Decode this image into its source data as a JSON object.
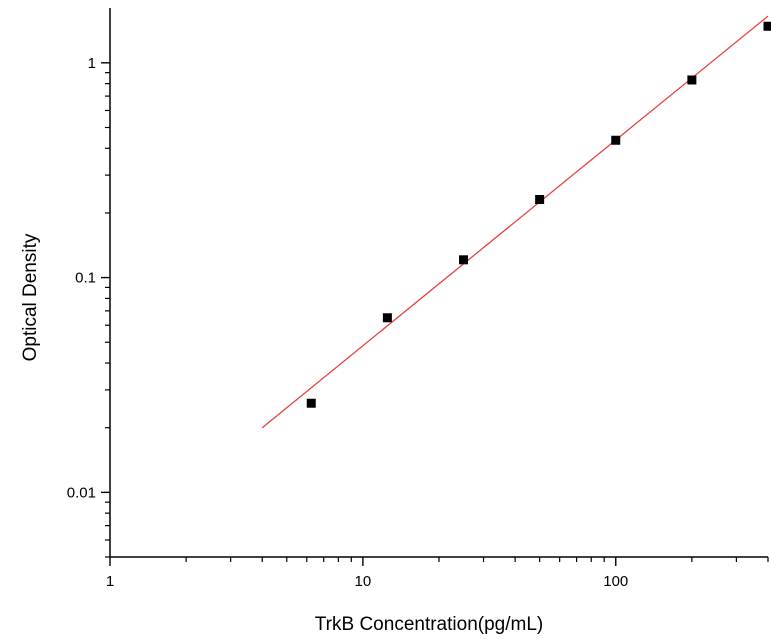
{
  "chart_data": {
    "type": "scatter",
    "title": "",
    "xlabel": "TrkB Concentration(pg/mL)",
    "ylabel": "Optical Density",
    "xscale": "log",
    "yscale": "log",
    "xlim": [
      1,
      400
    ],
    "ylim": [
      0.005,
      1.8
    ],
    "xticks": [
      {
        "value": 1,
        "label": "1"
      },
      {
        "value": 10,
        "label": "10"
      },
      {
        "value": 100,
        "label": "100"
      }
    ],
    "yticks": [
      {
        "value": 0.01,
        "label": "0.01"
      },
      {
        "value": 0.1,
        "label": "0.1"
      },
      {
        "value": 1,
        "label": "1"
      }
    ],
    "grid": false,
    "legend": "none",
    "series": [
      {
        "kind": "points",
        "marker": "square",
        "color": "#000000",
        "x": [
          6.25,
          12.5,
          25,
          50,
          100,
          200,
          400
        ],
        "y": [
          0.026,
          0.065,
          0.121,
          0.231,
          0.436,
          0.832,
          1.48
        ]
      },
      {
        "kind": "fit-line",
        "color": "#e8423f",
        "x": [
          4,
          400
        ],
        "y": [
          0.02,
          1.65
        ]
      }
    ]
  }
}
